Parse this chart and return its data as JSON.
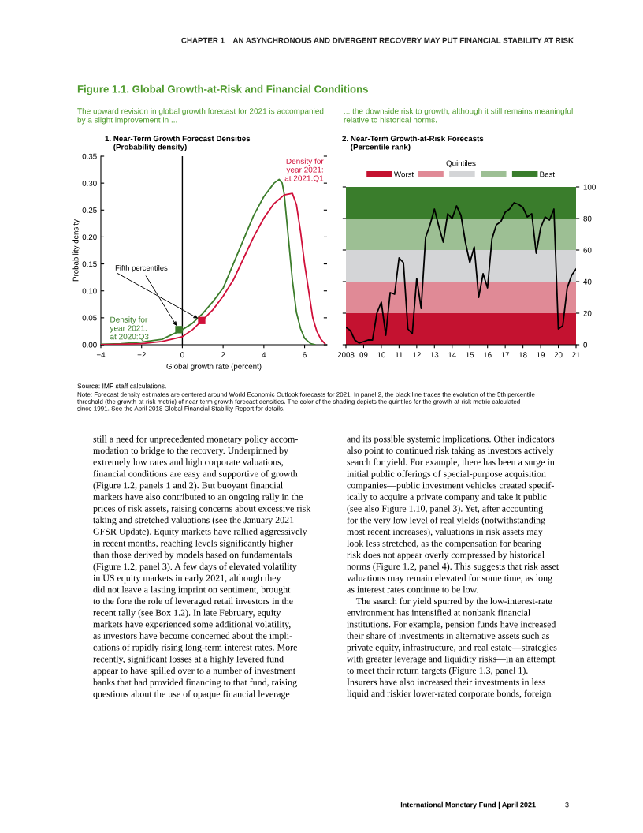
{
  "chart_data": [
    {
      "type": "line",
      "title": "1. Near-Term Growth Forecast Densities\n    (Probability density)",
      "xlabel": "Global growth rate (percent)",
      "ylabel": "Probability density",
      "series": [
        {
          "name": "Density for\nyear 2021:\nat 2020:Q3",
          "color": "#3d7d2c",
          "x": [
            -4,
            -3,
            -2,
            -1,
            0,
            0.5,
            1,
            1.5,
            2,
            2.5,
            3,
            3.5,
            4,
            4.5,
            4.75,
            4.9,
            5.0,
            5.2,
            5.4,
            5.6,
            5.8,
            6.0,
            6.3,
            6.5
          ],
          "values": [
            0.001,
            0.002,
            0.005,
            0.01,
            0.028,
            0.04,
            0.058,
            0.08,
            0.105,
            0.15,
            0.195,
            0.24,
            0.275,
            0.3,
            0.307,
            0.3,
            0.28,
            0.2,
            0.12,
            0.06,
            0.03,
            0.012,
            0.002,
            0.0
          ]
        },
        {
          "name": "Density for\nyear 2021:\nat 2021:Q1",
          "color": "#d0103a",
          "x": [
            -4,
            -3,
            -2,
            -1,
            0,
            0.5,
            1,
            1.5,
            2,
            2.5,
            3,
            3.5,
            4,
            4.5,
            5.0,
            5.4,
            5.6,
            5.8,
            6.0,
            6.2,
            6.4,
            6.6,
            6.8,
            7.0
          ],
          "values": [
            0.0,
            0.001,
            0.002,
            0.006,
            0.015,
            0.028,
            0.046,
            0.065,
            0.09,
            0.12,
            0.16,
            0.2,
            0.235,
            0.262,
            0.278,
            0.281,
            0.26,
            0.21,
            0.15,
            0.1,
            0.05,
            0.025,
            0.01,
            0.002
          ]
        },
        {
          "type": "scatter",
          "marker": "square",
          "color": "#3d7d2c",
          "x": [
            -0.17
          ],
          "values": [
            0.028
          ]
        },
        {
          "type": "scatter",
          "marker": "square",
          "color": "#d0103a",
          "x": [
            0.95
          ],
          "values": [
            0.045
          ]
        }
      ],
      "xlim": [
        -4,
        7.1
      ],
      "ylim": [
        0,
        0.35
      ],
      "xticks": [
        {
          "value": -4,
          "label": "−4"
        },
        {
          "value": -2,
          "label": "−2"
        },
        0,
        2,
        4,
        6
      ],
      "yticks": [
        {
          "value": 0,
          "label": "0.00"
        },
        {
          "value": 0.05,
          "label": "0.05"
        },
        {
          "value": 0.1,
          "label": "0.10"
        },
        {
          "value": 0.15,
          "label": "0.15"
        },
        {
          "value": 0.2,
          "label": "0.20"
        },
        {
          "value": 0.25,
          "label": "0.25"
        },
        {
          "value": 0.3,
          "label": "0.30"
        },
        {
          "value": 0.35,
          "label": "0.35"
        }
      ],
      "ref_lines": [
        {
          "axis": "x",
          "value": 0,
          "color": "#000000"
        }
      ],
      "grid": false,
      "legend": false,
      "annotations": [
        "CHAPTER 1    AN ASYNCHRONOUS AND DIVERGENT RECOVERY MAY PUT FINANCIAL STABILITY AT RISK",
        "Figure 1.1. Global Growth-at-Risk and Financial Conditions",
        "The upward revision in global growth forecast for 2021 is accompanied\nby a slight improvement in ...",
        {
          "text": "Fifth percentiles",
          "x": -0.17,
          "y": 0.028
        },
        "Source: IMF staff calculations.",
        "Note: Forecast density estimates are centered around World Economic Outlook forecasts for 2021. In panel 2, the black line traces the evolution of the 5th percentile\nthreshold (the growth-at-risk metric) of near-term growth forecast densities. The color of the shading depicts the quintiles for the growth-at-risk metric calculated\nsince 1991. See the April 2018 Global Financial Stability Report for details.",
        "still a need for unprecedented monetary policy accom-\nmodation to bridge to the recovery. Underpinned by\nextremely low rates and high corporate valuations,\nfinancial conditions are easy and supportive of growth\n(Figure 1.2, panels 1 and 2). But buoyant financial\nmarkets have also contributed to an ongoing rally in the\nprices of risk assets, raising concerns about excessive risk\ntaking and stretched valuations (see the January 2021\nGFSR Update). Equity markets have rallied aggressively\nin recent months, reaching levels significantly higher\nthan those derived by models based on fundamentals\n(Figure 1.2, panel 3). A few days of elevated volatility\nin US equity markets in early 2021, although they\ndid not leave a lasting imprint on sentiment, brought\nto the fore the role of leveraged retail investors in the\nrecent rally (see Box 1.2). In late February, equity\nmarkets have experienced some additional volatility,\nas investors have become concerned about the impli-\ncations of rapidly rising long-term interest rates. More\nrecently, significant losses at a highly levered fund\nappear to have spilled over to a number of investment\nbanks that had provided financing to that fund, raising\nquestions about the use of opaque financial leverage",
        "and its possible systemic implications. Other indicators\nalso point to continued risk taking as investors actively\nsearch for yield. For example, there has been a surge in\ninitial public offerings of special-purpose acquisition\ncompanies—public investment vehicles created specif-\nically to acquire a private company and take it public\n(see also Figure 1.10, panel 3). Yet, after accounting\nfor the very low level of real yields (notwithstanding\nmost recent increases), valuations in risk assets may\nlook less stretched, as the compensation for bearing\nrisk does not appear overly compressed by historical\nnorms (Figure 1.2, panel 4). This suggests that risk asset\nvaluations may remain elevated for some time, as long\nas interest rates continue to be low.\n    The search for yield spurred by the low-interest-rate\nenvironment has intensified at nonbank financial\ninstitutions. For example, pension funds have increased\ntheir share of investments in alternative assets such as\nprivate equity, infrastructure, and real estate—strategies\nwith greater leverage and liquidity risks—in an attempt\nto meet their return targets (Figure 1.3, panel 1).\nInsurers have also increased their investments in less\nliquid and riskier lower-rated corporate bonds, foreign",
        "International Monetary Fund | April 2021",
        "3"
      ]
    },
    {
      "type": "line",
      "title": "2. Near-Term Growth-at-Risk Forecasts\n    (Percentile rank)",
      "legend_title": "Quintiles",
      "x": [
        2008,
        2008.25,
        2008.5,
        2008.75,
        2009,
        2009.25,
        2009.5,
        2009.75,
        2010,
        2010.25,
        2010.5,
        2010.75,
        2011,
        2011.25,
        2011.5,
        2011.75,
        2012,
        2012.25,
        2012.5,
        2012.75,
        2013,
        2013.25,
        2013.5,
        2013.75,
        2014,
        2014.25,
        2014.5,
        2014.75,
        2015,
        2015.25,
        2015.5,
        2015.75,
        2016,
        2016.25,
        2016.5,
        2016.75,
        2017,
        2017.25,
        2017.5,
        2017.75,
        2018,
        2018.25,
        2018.5,
        2018.75,
        2019,
        2019.25,
        2019.5,
        2019.75,
        2020,
        2020.25,
        2020.5,
        2020.75,
        2021
      ],
      "series": [
        {
          "color": "#000000",
          "values": [
            11,
            9,
            3,
            1,
            2,
            3,
            3,
            20,
            27,
            6,
            33,
            32,
            55,
            52,
            10,
            7,
            42,
            23,
            68,
            76,
            86,
            75,
            65,
            83,
            80,
            88,
            82,
            65,
            52,
            62,
            30,
            45,
            36,
            67,
            76,
            78,
            84,
            86,
            90,
            89,
            87,
            81,
            83,
            58,
            74,
            81,
            79,
            86,
            10,
            12,
            36,
            44,
            48
          ]
        }
      ],
      "bands": [
        {
          "axis": "y",
          "from": 0,
          "to": 20,
          "label": "Worst",
          "color": "#c41230"
        },
        {
          "axis": "y",
          "from": 20,
          "to": 40,
          "label": null,
          "color": "#e08a96"
        },
        {
          "axis": "y",
          "from": 40,
          "to": 60,
          "label": null,
          "color": "#d4d5d7"
        },
        {
          "axis": "y",
          "from": 60,
          "to": 80,
          "label": null,
          "color": "#9dbf94"
        },
        {
          "axis": "y",
          "from": 80,
          "to": 100,
          "label": "Best",
          "color": "#3a7d2c"
        }
      ],
      "xlim": [
        2008,
        2021
      ],
      "ylim": [
        0,
        100
      ],
      "xticks": [
        {
          "value": 2008,
          "label": "2008"
        },
        {
          "value": 2009,
          "label": "09"
        },
        {
          "value": 2010,
          "label": "10"
        },
        {
          "value": 2011,
          "label": "11"
        },
        {
          "value": 2012,
          "label": "12"
        },
        {
          "value": 2013,
          "label": "13"
        },
        {
          "value": 2014,
          "label": "14"
        },
        {
          "value": 2015,
          "label": "15"
        },
        {
          "value": 2016,
          "label": "16"
        },
        {
          "value": 2017,
          "label": "17"
        },
        {
          "value": 2018,
          "label": "18"
        },
        {
          "value": 2019,
          "label": "19"
        },
        {
          "value": 2020,
          "label": "20"
        },
        {
          "value": 2021,
          "label": "21"
        }
      ],
      "yticks": [
        0,
        20,
        40,
        60,
        80,
        100
      ],
      "grid": false,
      "legend": "top",
      "annotations": [
        "... the downside risk to growth, although it still remains meaningful\nrelative to historical norms."
      ]
    }
  ]
}
